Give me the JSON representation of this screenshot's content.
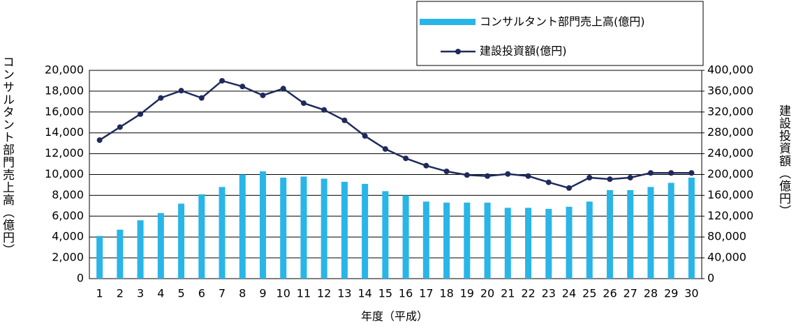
{
  "chart_data": {
    "type": "bar-line",
    "xlabel": "年度（平成）",
    "ylabel": "コンサルタント部門売上高（億円）",
    "y2label": "建設投資額（億円）",
    "categories": [
      "1",
      "2",
      "3",
      "4",
      "5",
      "6",
      "7",
      "8",
      "9",
      "10",
      "11",
      "12",
      "13",
      "14",
      "15",
      "16",
      "17",
      "18",
      "19",
      "20",
      "21",
      "22",
      "23",
      "24",
      "25",
      "26",
      "27",
      "28",
      "29",
      "30"
    ],
    "series": [
      {
        "name": "コンサルタント部門売上高(億円)",
        "type": "bar",
        "color": "#29b5e8",
        "values": [
          4100,
          4700,
          5600,
          6300,
          7200,
          8100,
          8800,
          10000,
          10300,
          9700,
          9800,
          9600,
          9300,
          9100,
          8400,
          8000,
          7400,
          7300,
          7300,
          7300,
          6800,
          6800,
          6700,
          6900,
          7400,
          8500,
          8500,
          8800,
          9200,
          9700
        ]
      },
      {
        "name": "建設投資額(億円)",
        "type": "line",
        "axis": "y2",
        "color": "#1f2a5c",
        "values": [
          266000,
          291000,
          316000,
          347000,
          361000,
          347000,
          380000,
          369000,
          352000,
          365000,
          337000,
          324000,
          304000,
          274000,
          249000,
          231000,
          217000,
          206000,
          199000,
          197000,
          201000,
          197000,
          185000,
          174000,
          194000,
          191000,
          194000,
          203000,
          203000,
          203000
        ]
      }
    ],
    "ylim": [
      0,
      20000
    ],
    "yticks": [
      0,
      {
        "value": 2000,
        "label": "2,000"
      },
      {
        "value": 4000,
        "label": "4,000"
      },
      {
        "value": 6000,
        "label": "6,000"
      },
      {
        "value": 8000,
        "label": "8,000"
      },
      {
        "value": 10000,
        "label": "10,000"
      },
      {
        "value": 12000,
        "label": "12,000"
      },
      {
        "value": 14000,
        "label": "14,000"
      },
      {
        "value": 16000,
        "label": "16,000"
      },
      {
        "value": 18000,
        "label": "18,000"
      },
      {
        "value": 20000,
        "label": "20,000"
      }
    ],
    "y2lim": [
      0,
      400000
    ],
    "y2ticks": [
      0,
      {
        "value": 40000,
        "label": "40,000"
      },
      {
        "value": 80000,
        "label": "80,000"
      },
      {
        "value": 120000,
        "label": "120,000"
      },
      {
        "value": 160000,
        "label": "160,000"
      },
      {
        "value": 200000,
        "label": "200,000"
      },
      {
        "value": 240000,
        "label": "240,000"
      },
      {
        "value": 280000,
        "label": "280,000"
      },
      {
        "value": 320000,
        "label": "320,000"
      },
      {
        "value": 360000,
        "label": "360,000"
      },
      {
        "value": 400000,
        "label": "400,000"
      }
    ],
    "grid": true
  }
}
